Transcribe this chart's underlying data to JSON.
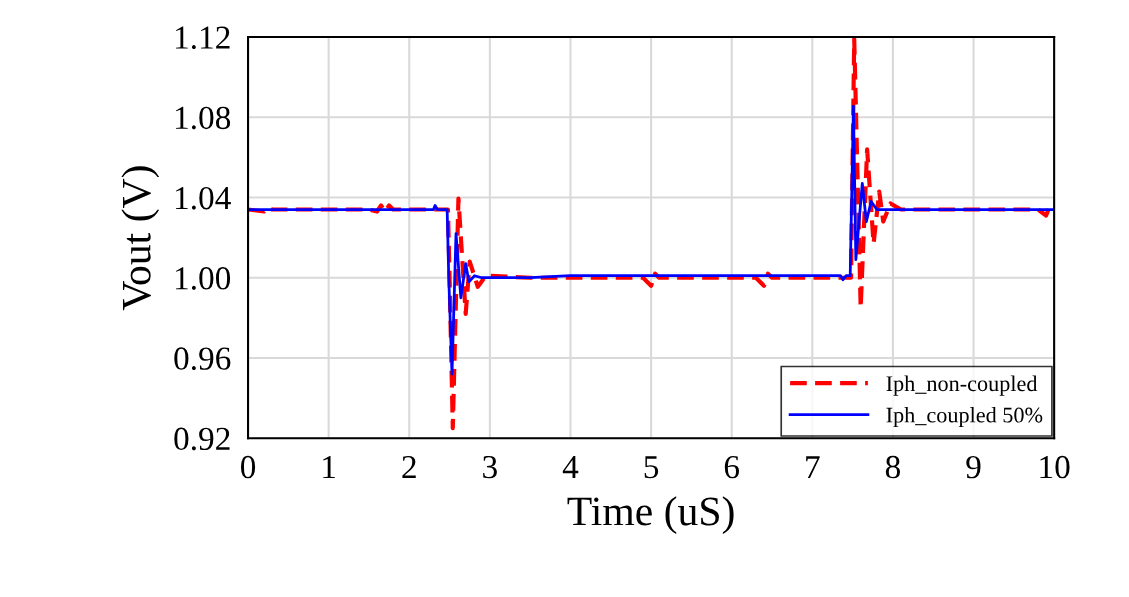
{
  "chart_data": {
    "type": "line",
    "xlabel": "Time (uS)",
    "ylabel": "Vout (V)",
    "xlim": [
      0,
      10
    ],
    "xticks": [
      0,
      1,
      2,
      3,
      4,
      5,
      6,
      7,
      8,
      9,
      10
    ],
    "ylim": [
      0.92,
      1.12
    ],
    "yticks": [
      {
        "value": 0.92,
        "label": "0.92"
      },
      {
        "value": 0.96,
        "label": "0.96"
      },
      {
        "value": 1.0,
        "label": "1.00"
      },
      {
        "value": 1.04,
        "label": "1.04"
      },
      {
        "value": 1.08,
        "label": "1.08"
      },
      {
        "value": 1.12,
        "label": "1.12"
      }
    ],
    "grid": true,
    "legend": "bottom right",
    "series": [
      {
        "name": "Iph_non-coupled",
        "color": "#ff0000",
        "line_style": "dashed",
        "x": [
          0,
          0.2,
          0.25,
          0.3,
          1.5,
          1.6,
          1.65,
          1.7,
          1.75,
          1.8,
          2.3,
          2.48,
          2.5,
          2.54,
          2.61,
          2.7,
          2.75,
          2.85,
          2.95,
          3.5,
          4.9,
          5.0,
          5.05,
          5.1,
          6.3,
          6.4,
          6.45,
          6.5,
          7.45,
          7.48,
          7.52,
          7.6,
          7.68,
          7.76,
          7.83,
          7.88,
          7.97,
          8.1,
          9.8,
          9.9,
          9.95,
          10
        ],
        "values": [
          1.034,
          1.033,
          1.035,
          1.034,
          1.034,
          1.033,
          1.036,
          1.033,
          1.036,
          1.034,
          1.034,
          1.034,
          1.0,
          0.925,
          1.0395,
          0.982,
          1.008,
          0.9955,
          1.001,
          1.0,
          1.0,
          0.996,
          1.002,
          1.0,
          1.0,
          0.996,
          1.002,
          1.0,
          1.0,
          1.0,
          1.119,
          0.985,
          1.064,
          1.017,
          1.043,
          1.028,
          1.037,
          1.034,
          1.034,
          1.031,
          1.036,
          1.034
        ]
      },
      {
        "name": "Iph_coupled 50%",
        "color": "#0000ff",
        "line_style": "solid",
        "x": [
          0,
          2.3,
          2.32,
          2.35,
          2.47,
          2.49,
          2.53,
          2.58,
          2.64,
          2.7,
          2.74,
          2.81,
          2.9,
          3.5,
          4.0,
          7.0,
          7.35,
          7.38,
          7.42,
          7.47,
          7.51,
          7.54,
          7.62,
          7.67,
          7.73,
          7.8,
          8.0,
          10
        ],
        "values": [
          1.034,
          1.034,
          1.036,
          1.034,
          1.034,
          1.0,
          0.952,
          1.022,
          0.99,
          1.007,
          0.998,
          1.001,
          1.0,
          1.0,
          1.001,
          1.001,
          1.001,
          0.999,
          1.001,
          1.001,
          1.0855,
          1.009,
          1.047,
          1.028,
          1.038,
          1.034,
          1.034,
          1.034
        ]
      }
    ]
  }
}
